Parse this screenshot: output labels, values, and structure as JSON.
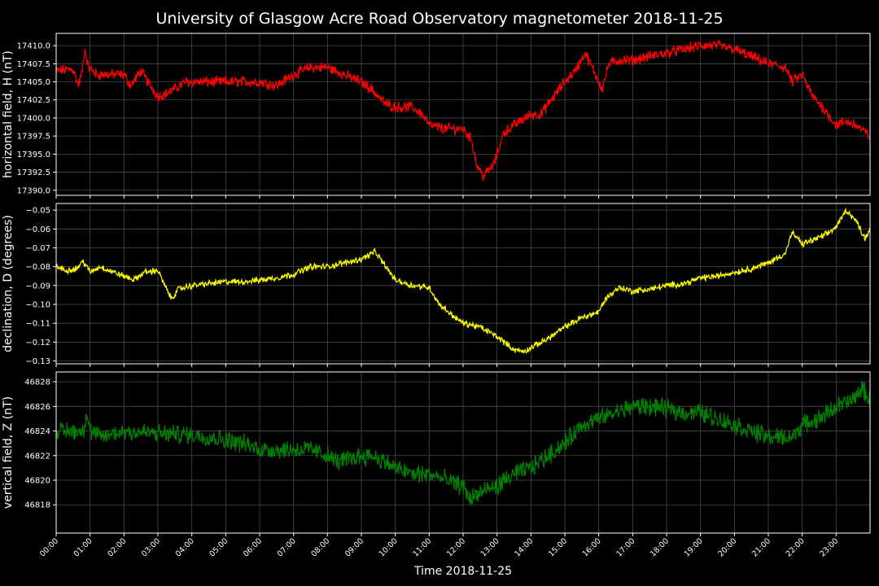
{
  "title": "University of Glasgow Acre Road Observatory magnetometer 2018-11-25",
  "xlabel": "Time 2018-11-25",
  "colors": {
    "background": "#000000",
    "grid": "#555555",
    "axes": "#ffffff"
  },
  "chart_data": [
    {
      "type": "line",
      "ylabel": "horizontal field, H (nT)",
      "color": "#ff0000",
      "ylim": [
        17389.3,
        17411.7
      ],
      "yticks": [
        17390.0,
        17392.5,
        17395.0,
        17397.5,
        17400.0,
        17402.5,
        17405.0,
        17407.5,
        17410.0
      ],
      "ytick_labels": [
        "17390.0",
        "17392.5",
        "17395.0",
        "17397.5",
        "17400.0",
        "17402.5",
        "17405.0",
        "17407.5",
        "17410.0"
      ],
      "noise": 0.6,
      "x_hours": [
        0,
        0.5,
        0.65,
        0.75,
        0.85,
        0.95,
        1.2,
        1.5,
        2.0,
        2.2,
        2.5,
        2.7,
        3.0,
        3.3,
        3.5,
        3.8,
        4.0,
        4.5,
        5.0,
        5.5,
        6.0,
        6.5,
        7.0,
        7.5,
        8.0,
        8.5,
        9.0,
        9.3,
        9.7,
        10.0,
        10.5,
        10.8,
        11.0,
        11.5,
        12.0,
        12.25,
        12.4,
        12.6,
        12.9,
        13.2,
        13.5,
        14.0,
        14.3,
        14.6,
        15.0,
        15.3,
        15.6,
        15.9,
        16.1,
        16.3,
        16.6,
        17.0,
        17.5,
        18.0,
        18.5,
        19.0,
        19.5,
        20.0,
        20.5,
        21.0,
        21.5,
        21.7,
        22.0,
        22.3,
        22.6,
        23.0,
        23.3,
        23.6,
        23.85,
        24.0
      ],
      "values": [
        17406.5,
        17406.8,
        17404.5,
        17406.0,
        17409.5,
        17407.0,
        17406.0,
        17406.0,
        17406.0,
        17404.5,
        17406.5,
        17405.0,
        17403.0,
        17403.5,
        17404.0,
        17405.0,
        17405.0,
        17405.0,
        17405.0,
        17405.0,
        17405.0,
        17404.5,
        17406.0,
        17407.0,
        17407.0,
        17406.0,
        17405.0,
        17404.0,
        17402.0,
        17401.5,
        17401.5,
        17400.5,
        17399.0,
        17398.5,
        17398.5,
        17397.0,
        17393.5,
        17392.0,
        17393.5,
        17398.0,
        17399.0,
        17400.5,
        17400.5,
        17402.5,
        17405.0,
        17406.5,
        17409.0,
        17406.0,
        17404.0,
        17407.5,
        17408.0,
        17408.0,
        17408.5,
        17409.0,
        17409.5,
        17410.0,
        17410.0,
        17409.5,
        17408.5,
        17407.5,
        17407.0,
        17405.0,
        17406.0,
        17403.0,
        17401.5,
        17399.0,
        17399.5,
        17399.0,
        17398.0,
        17397.5
      ]
    },
    {
      "type": "line",
      "ylabel": "declination, D (degrees)",
      "color": "#ffff00",
      "ylim": [
        -0.1315,
        -0.0465
      ],
      "yticks": [
        -0.13,
        -0.12,
        -0.11,
        -0.1,
        -0.09,
        -0.08,
        -0.07,
        -0.06,
        -0.05
      ],
      "ytick_labels": [
        "−0.13",
        "−0.12",
        "−0.11",
        "−0.10",
        "−0.09",
        "−0.08",
        "−0.07",
        "−0.06",
        "−0.05"
      ],
      "noise": 0.0013,
      "x_hours": [
        0,
        0.3,
        0.6,
        0.8,
        1.0,
        1.3,
        1.7,
        2.0,
        2.3,
        2.6,
        3.0,
        3.2,
        3.4,
        3.6,
        4.0,
        4.5,
        5.0,
        5.5,
        6.0,
        6.5,
        7.0,
        7.5,
        8.0,
        8.5,
        9.0,
        9.4,
        9.8,
        10.0,
        10.5,
        11.0,
        11.3,
        11.7,
        12.0,
        12.5,
        13.0,
        13.5,
        13.8,
        14.2,
        14.6,
        15.0,
        15.5,
        16.0,
        16.2,
        16.6,
        17.0,
        17.5,
        18.0,
        18.5,
        19.0,
        19.5,
        20.0,
        20.5,
        21.0,
        21.3,
        21.5,
        21.7,
        22.0,
        22.3,
        22.7,
        23.0,
        23.3,
        23.6,
        23.85,
        24.0
      ],
      "values": [
        -0.08,
        -0.082,
        -0.081,
        -0.077,
        -0.083,
        -0.08,
        -0.083,
        -0.085,
        -0.087,
        -0.083,
        -0.082,
        -0.09,
        -0.097,
        -0.092,
        -0.09,
        -0.089,
        -0.088,
        -0.088,
        -0.087,
        -0.086,
        -0.084,
        -0.08,
        -0.08,
        -0.078,
        -0.076,
        -0.072,
        -0.082,
        -0.087,
        -0.09,
        -0.091,
        -0.1,
        -0.106,
        -0.11,
        -0.112,
        -0.117,
        -0.124,
        -0.125,
        -0.121,
        -0.117,
        -0.112,
        -0.107,
        -0.104,
        -0.097,
        -0.091,
        -0.093,
        -0.092,
        -0.09,
        -0.089,
        -0.086,
        -0.085,
        -0.083,
        -0.081,
        -0.078,
        -0.075,
        -0.073,
        -0.062,
        -0.068,
        -0.066,
        -0.063,
        -0.059,
        -0.05,
        -0.056,
        -0.065,
        -0.06
      ]
    },
    {
      "type": "line",
      "ylabel": "vertical field, Z (nT)",
      "color": "#008000",
      "ylim": [
        46815.7,
        46828.8
      ],
      "yticks": [
        46818,
        46820,
        46822,
        46824,
        46826,
        46828
      ],
      "ytick_labels": [
        "46818",
        "46820",
        "46822",
        "46824",
        "46826",
        "46828"
      ],
      "noise": 0.6,
      "x_hours": [
        0,
        0.5,
        0.8,
        0.9,
        1.0,
        1.3,
        2.0,
        3.0,
        4.0,
        5.0,
        5.5,
        6.0,
        7.0,
        7.5,
        8.0,
        8.3,
        8.7,
        9.0,
        9.3,
        9.7,
        10.0,
        10.5,
        11.0,
        11.5,
        12.0,
        12.2,
        12.5,
        13.0,
        13.5,
        14.0,
        14.5,
        15.0,
        15.5,
        16.0,
        16.5,
        17.0,
        17.5,
        18.0,
        18.5,
        19.0,
        19.5,
        20.0,
        20.5,
        21.0,
        21.5,
        21.7,
        22.0,
        22.5,
        23.0,
        23.5,
        23.75,
        24.0
      ],
      "values": [
        46824.0,
        46824.0,
        46824.0,
        46825.5,
        46824.0,
        46823.5,
        46824.0,
        46823.8,
        46823.7,
        46823.3,
        46823.0,
        46822.5,
        46822.5,
        46822.5,
        46822.0,
        46821.5,
        46821.8,
        46822.0,
        46822.0,
        46821.5,
        46821.0,
        46820.5,
        46820.5,
        46820.0,
        46819.5,
        46818.5,
        46819.0,
        46819.5,
        46820.5,
        46821.0,
        46822.0,
        46823.0,
        46824.5,
        46825.0,
        46825.5,
        46826.0,
        46826.0,
        46825.8,
        46825.5,
        46825.5,
        46825.0,
        46824.5,
        46824.0,
        46823.5,
        46823.5,
        46823.5,
        46824.5,
        46825.0,
        46826.0,
        46826.5,
        46827.5,
        46826.5
      ]
    }
  ],
  "x_axis": {
    "xlim_hours": [
      0,
      24
    ],
    "tick_labels": [
      "00:00",
      "01:00",
      "02:00",
      "03:00",
      "04:00",
      "05:00",
      "06:00",
      "07:00",
      "08:00",
      "09:00",
      "10:00",
      "11:00",
      "12:00",
      "13:00",
      "14:00",
      "15:00",
      "16:00",
      "17:00",
      "18:00",
      "19:00",
      "20:00",
      "21:00",
      "22:00",
      "23:00"
    ]
  }
}
